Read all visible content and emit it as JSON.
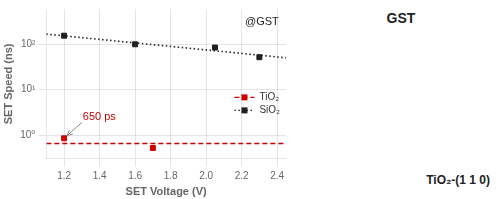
{
  "chart_data": {
    "type": "scatter",
    "xlabel": "SET Voltage (V)",
    "ylabel": "SET Speed (ns)",
    "log": "y",
    "grid": true,
    "legend": "lower right",
    "xlim": [
      1.1,
      2.45
    ],
    "ylim": [
      0.3,
      600
    ],
    "xticks": [
      1.2,
      1.4,
      1.6,
      1.8,
      {
        "value": 2.0,
        "label": "2.0"
      },
      2.2,
      2.4
    ],
    "yticks": [
      {
        "value": 1,
        "label": "10⁰"
      },
      {
        "value": 10,
        "label": "10¹"
      },
      {
        "value": 100,
        "label": "10²"
      }
    ],
    "series": [
      {
        "name": "TiO₂",
        "color": "#cc0000",
        "marker": "square",
        "line_style": "dashed",
        "x": [
          1.2,
          1.7
        ],
        "values": [
          0.85,
          0.52
        ],
        "hline": 0.65
      },
      {
        "name": "SiO₂",
        "color": "#222222",
        "marker": "square",
        "line_style": "dotted",
        "x": [
          1.2,
          1.6,
          2.05,
          2.3
        ],
        "values": [
          155,
          100,
          85,
          52
        ],
        "trend": {
          "x": [
            1.1,
            2.45
          ],
          "values": [
            168.0,
            50.4
          ]
        }
      }
    ],
    "annotations": [
      {
        "text": "@GST"
      },
      {
        "text": "650 ps",
        "x": 1.3,
        "y": 1.9,
        "xy": [
          1.2,
          0.85
        ],
        "color": "#cc0000"
      }
    ],
    "inset_labels": [
      "GST",
      "TiO₂-(1 1 0)"
    ]
  }
}
